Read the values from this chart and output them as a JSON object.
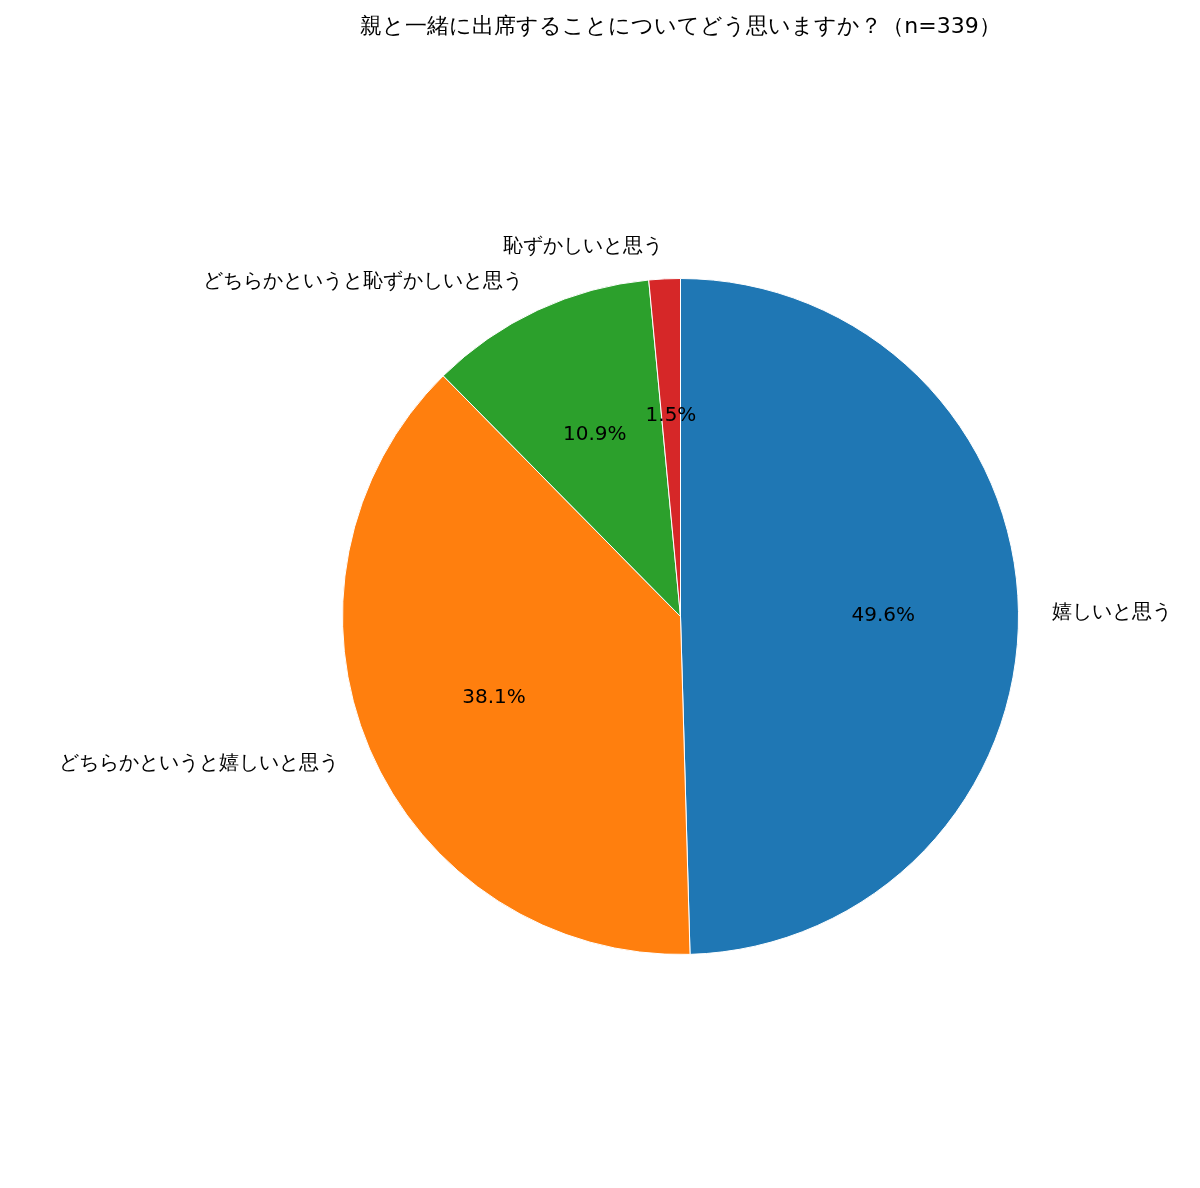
{
  "chart_data": {
    "type": "pie",
    "title": "親と一緒に出席することについてどう思いますか？（n=339）",
    "categories": [
      "嬉しいと思う",
      "どちらかというと嬉しいと思う",
      "どちらかというと恥ずかしいと思う",
      "恥ずかしいと思う"
    ],
    "values": [
      49.6,
      38.1,
      10.9,
      1.5
    ],
    "value_labels": [
      "49.6%",
      "38.1%",
      "10.9%",
      "1.5%"
    ],
    "colors": [
      "#1f77b4",
      "#ff7f0e",
      "#2ca02c",
      "#d62728"
    ],
    "legend": false
  }
}
